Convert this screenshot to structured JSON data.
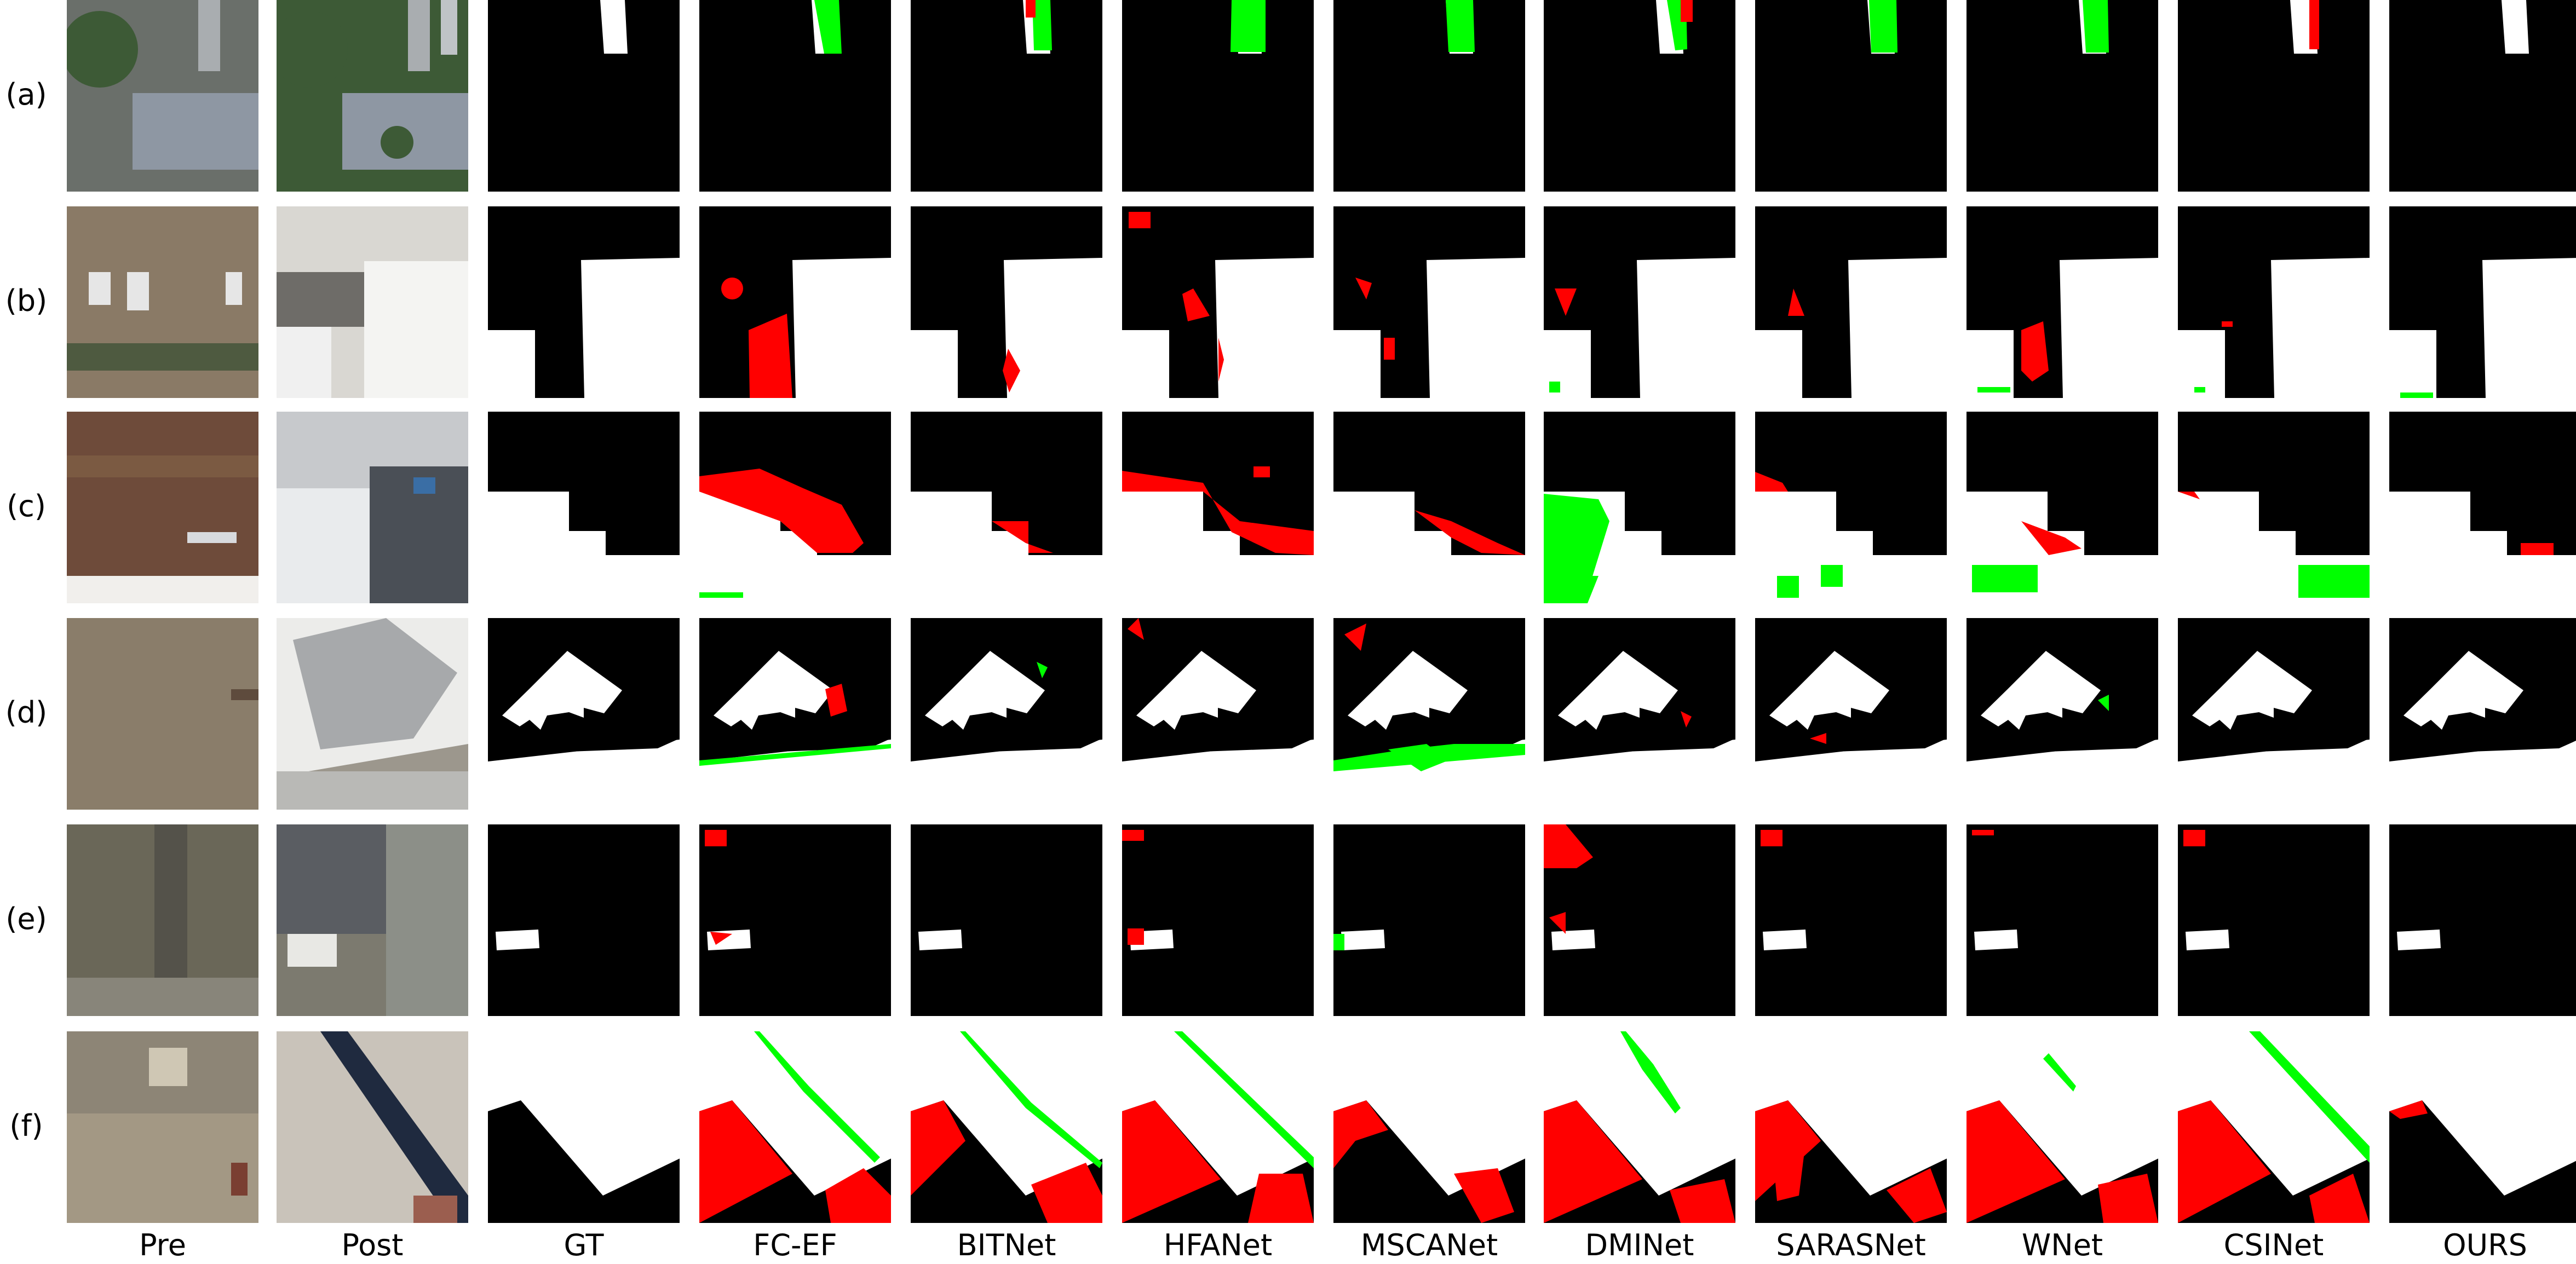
{
  "figure": {
    "row_labels": [
      "(a)",
      "(b)",
      "(c)",
      "(d)",
      "(e)",
      "(f)"
    ],
    "column_labels": [
      "Pre",
      "Post",
      "GT",
      "FC-EF",
      "BITNet",
      "HFANet",
      "MSCANet",
      "DMINet",
      "SARASNet",
      "WNet",
      "CSINet",
      "OURS"
    ]
  },
  "colors": {
    "background": "#000000",
    "change": "#ffffff",
    "false_positive": "#ff0000",
    "false_negative": "#00ff00"
  },
  "icons": {
    "pre_image": "aerial-photo-before",
    "post_image": "aerial-photo-after",
    "maps": "binary-change-map"
  }
}
